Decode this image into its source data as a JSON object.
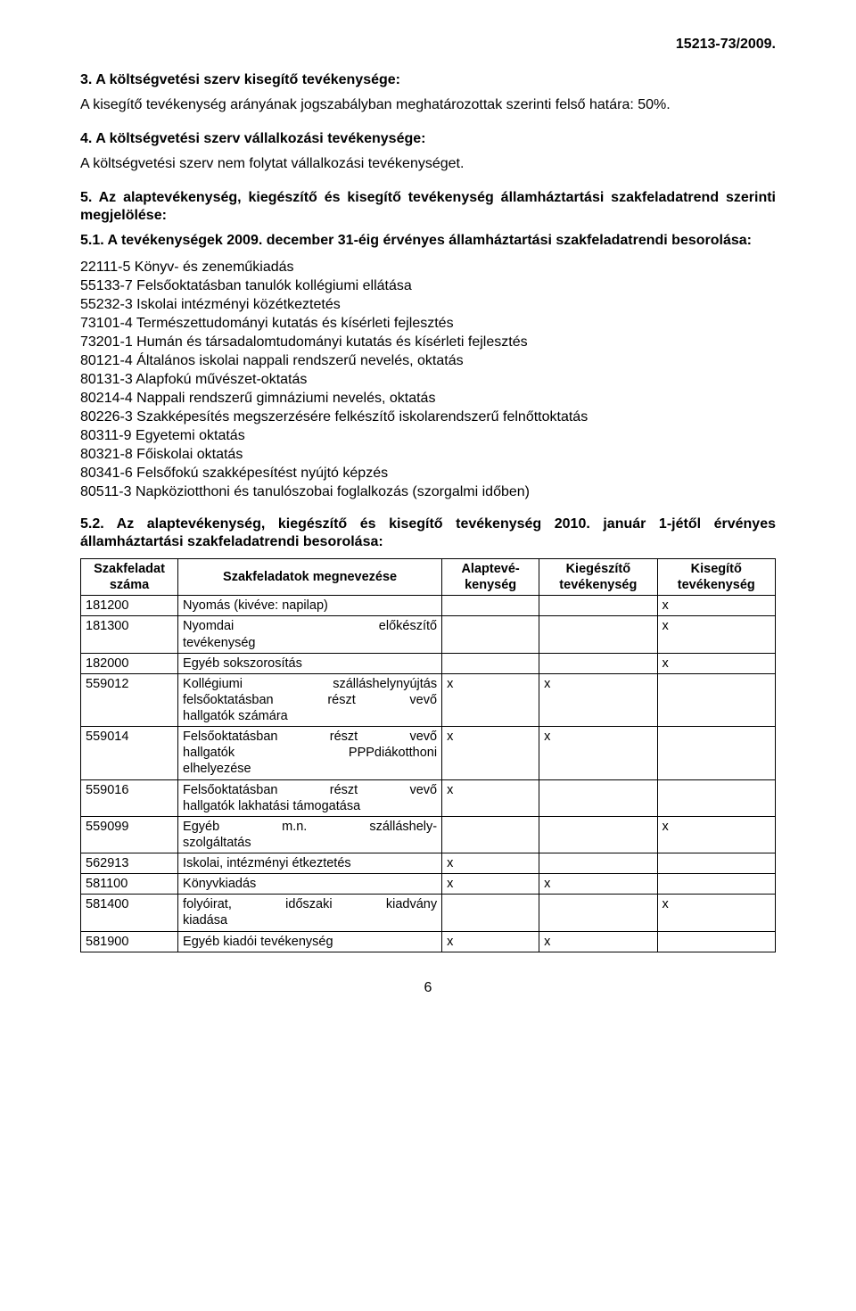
{
  "doc_number": "15213-73/2009.",
  "s3_head": "3.  A költségvetési szerv kisegítő tevékenysége:",
  "s3_para": "A kisegítő tevékenység arányának jogszabályban meghatározottak szerinti felső határa: 50%.",
  "s4_head": "4.  A költségvetési szerv vállalkozási tevékenysége:",
  "s4_para": "A költségvetési szerv nem folytat vállalkozási tevékenységet.",
  "s5_head": "5.  Az alaptevékenység, kiegészítő és kisegítő tevékenység államháztartási szakfeladatrend szerinti megjelölése:",
  "s51_head": "5.1.  A tevékenységek 2009. december 31-éig érvényes államháztartási szakfeladatrendi besorolása:",
  "codes": [
    "22111-5 Könyv- és zeneműkiadás",
    "55133-7 Felsőoktatásban tanulók kollégiumi ellátása",
    "55232-3 Iskolai intézményi közétkeztetés",
    "73101-4 Természettudományi kutatás és kísérleti fejlesztés",
    "73201-1 Humán és társadalomtudományi kutatás és kísérleti fejlesztés",
    "80121-4 Általános iskolai nappali rendszerű nevelés, oktatás",
    "80131-3 Alapfokú művészet-oktatás",
    "80214-4 Nappali rendszerű gimnáziumi nevelés, oktatás",
    "80226-3 Szakképesítés megszerzésére felkészítő iskolarendszerű felnőttoktatás",
    "80311-9 Egyetemi oktatás",
    "80321-8 Főiskolai oktatás",
    "80341-6 Felsőfokú szakképesítést nyújtó képzés",
    "80511-3 Napköziotthoni és tanulószobai foglalkozás (szorgalmi időben)"
  ],
  "s52_head": "5.2.  Az alaptevékenység, kiegészítő és kisegítő tevékenység 2010. január 1-jétől érvényes államháztartási szakfeladatrendi besorolása:",
  "table": {
    "headers": {
      "szam": "Szakfeladat száma",
      "megnev": "Szakfeladatok megnevezése",
      "alap": "Alaptevé-kenység",
      "kieg": "Kiegészítő tevékenység",
      "kiseg": "Kisegítő tevékenység"
    },
    "rows": [
      {
        "szam": "181200",
        "megnev": "Nyomás (kivéve: napilap)",
        "alap": "",
        "kieg": "",
        "kiseg": "x"
      },
      {
        "szam": "181300",
        "megnev_lines": [
          [
            "Nyomdai",
            "előkészítő"
          ],
          [
            "tevékenység",
            ""
          ]
        ],
        "alap": "",
        "kieg": "",
        "kiseg": "x"
      },
      {
        "szam": "182000",
        "megnev": "Egyéb sokszorosítás",
        "alap": "",
        "kieg": "",
        "kiseg": "x"
      },
      {
        "szam": "559012",
        "megnev_lines": [
          [
            "Kollégiumi",
            "szálláshelynyújtás"
          ],
          [
            "felsőoktatásban",
            "részt",
            "vevő"
          ],
          [
            "hallgatók számára",
            ""
          ]
        ],
        "alap": "x",
        "kieg": "x",
        "kiseg": ""
      },
      {
        "szam": "559014",
        "megnev_lines": [
          [
            "Felsőoktatásban",
            "részt",
            "vevő"
          ],
          [
            "hallgatók",
            "PPPdiákotthoni"
          ],
          [
            "elhelyezése",
            ""
          ]
        ],
        "alap": "x",
        "kieg": "x",
        "kiseg": ""
      },
      {
        "szam": "559016",
        "megnev_lines": [
          [
            "Felsőoktatásban",
            "részt",
            "vevő"
          ],
          [
            "hallgatók lakhatási támogatása",
            ""
          ]
        ],
        "alap": "x",
        "kieg": "",
        "kiseg": ""
      },
      {
        "szam": "559099",
        "megnev_lines": [
          [
            "Egyéb",
            "m.n.",
            "szálláshely-"
          ],
          [
            "szolgáltatás",
            ""
          ]
        ],
        "alap": "",
        "kieg": "",
        "kiseg": "x"
      },
      {
        "szam": "562913",
        "megnev": "Iskolai, intézményi étkeztetés",
        "alap": "x",
        "kieg": "",
        "kiseg": ""
      },
      {
        "szam": "581100",
        "megnev": "Könyvkiadás",
        "alap": "x",
        "kieg": "x",
        "kiseg": ""
      },
      {
        "szam": "581400",
        "megnev_lines": [
          [
            "folyóirat,",
            "időszaki",
            "kiadvány"
          ],
          [
            "kiadása",
            ""
          ]
        ],
        "alap": "",
        "kieg": "",
        "kiseg": "x"
      },
      {
        "szam": "581900",
        "megnev": "Egyéb kiadói tevékenység",
        "alap": "x",
        "kieg": "x",
        "kiseg": ""
      }
    ]
  },
  "page_number": "6"
}
